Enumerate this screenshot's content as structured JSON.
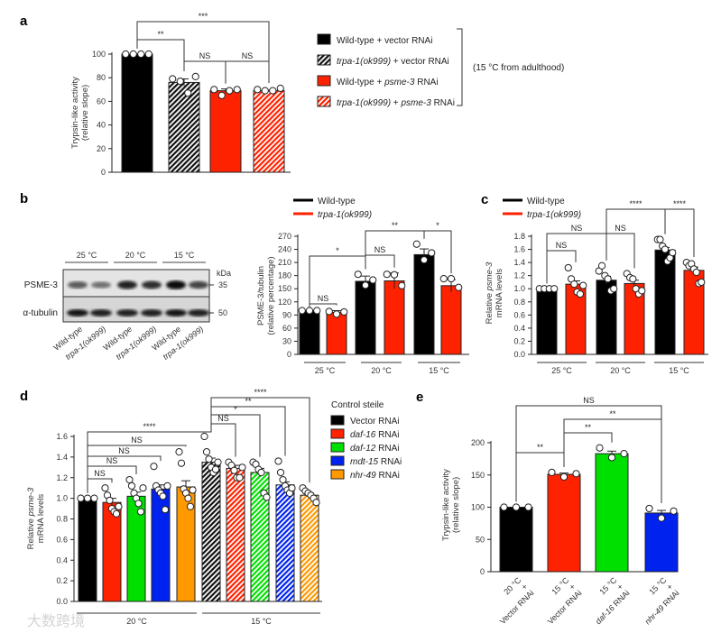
{
  "watermark": "大数跨境",
  "colors": {
    "black": "#000000",
    "red": "#ff2200",
    "green": "#00e000",
    "blue": "#0022ee",
    "orange": "#ff9900"
  },
  "panel_a": {
    "letter": "a",
    "legend": [
      {
        "parts": [
          {
            "t": "Wild-type + vector RNAi",
            "i": false
          }
        ],
        "fill": "black"
      },
      {
        "parts": [
          {
            "t": "trpa-1(ok999)",
            "i": true
          },
          {
            "t": " + vector RNAi",
            "i": false
          }
        ],
        "fill": "black-hatch"
      },
      {
        "parts": [
          {
            "t": "Wild-type + ",
            "i": false
          },
          {
            "t": "psme-3",
            "i": true
          },
          {
            "t": " RNAi",
            "i": false
          }
        ],
        "fill": "red"
      },
      {
        "parts": [
          {
            "t": "trpa-1(ok999)",
            "i": true
          },
          {
            "t": " + ",
            "i": false
          },
          {
            "t": "psme-3",
            "i": true
          },
          {
            "t": " RNAi",
            "i": false
          }
        ],
        "fill": "red-hatch"
      }
    ],
    "legend_note": "(15 °C from adulthood)"
  },
  "panel_b": {
    "letter": "b",
    "blot": {
      "temps": [
        "25 °C",
        "20 °C",
        "15 °C"
      ],
      "rows": [
        "PSME-3",
        "α-tubulin"
      ],
      "kda_label": "kDa",
      "kda": [
        "35",
        "50"
      ],
      "lanes": [
        "Wild-type",
        "trpa-1(ok999)",
        "Wild-type",
        "trpa-1(ok999)",
        "Wild-type",
        "trpa-1(ok999)"
      ],
      "psme3_intensity": [
        0.6,
        0.5,
        0.85,
        0.8,
        0.95,
        0.7
      ],
      "tubulin_intensity": [
        0.9,
        0.85,
        0.85,
        0.85,
        0.9,
        0.85
      ]
    },
    "legend": [
      "Wild-type",
      "trpa-1(ok999)"
    ]
  },
  "panel_c": {
    "letter": "c",
    "legend": [
      "Wild-type",
      "trpa-1(ok999)"
    ]
  },
  "panel_d": {
    "letter": "d",
    "legend_title": "Control steile",
    "legend": [
      {
        "parts": [
          {
            "t": "Vector RNAi",
            "i": false
          }
        ],
        "fill": "black"
      },
      {
        "parts": [
          {
            "t": "daf-16",
            "i": true
          },
          {
            "t": " RNAi",
            "i": false
          }
        ],
        "fill": "red"
      },
      {
        "parts": [
          {
            "t": "daf-12",
            "i": true
          },
          {
            "t": " RNAi",
            "i": false
          }
        ],
        "fill": "green"
      },
      {
        "parts": [
          {
            "t": "mdt-15",
            "i": true
          },
          {
            "t": " RNAi",
            "i": false
          }
        ],
        "fill": "blue"
      },
      {
        "parts": [
          {
            "t": "nhr-49",
            "i": true
          },
          {
            "t": " RNAi",
            "i": false
          }
        ],
        "fill": "orange"
      }
    ]
  },
  "panel_e": {
    "letter": "e"
  },
  "chart_data": [
    {
      "id": "a",
      "type": "bar",
      "ylabel": [
        "Trypsin-like activity",
        "(relative slope)"
      ],
      "ylim": [
        0,
        100
      ],
      "yticks": [
        0,
        20,
        40,
        60,
        80,
        100
      ],
      "categories": [
        "Wild-type + vector RNAi",
        "trpa-1(ok999) + vector RNAi",
        "Wild-type + psme-3 RNAi",
        "trpa-1(ok999) + psme-3 RNAi"
      ],
      "values": [
        100,
        76,
        69,
        69
      ],
      "errors": [
        0,
        3,
        1.5,
        0.5
      ],
      "fills": [
        "black",
        "black-hatch",
        "red",
        "red-hatch"
      ],
      "points": [
        [
          100,
          100,
          100,
          100
        ],
        [
          79,
          77,
          67,
          81
        ],
        [
          70,
          65,
          69,
          70
        ],
        [
          70,
          69,
          69,
          71
        ]
      ],
      "brackets": [
        {
          "from": 0,
          "to": 3,
          "label": "***"
        },
        {
          "from": 0,
          "to": 1,
          "label": "**"
        },
        {
          "from": 1,
          "to": 2,
          "label": "NS"
        },
        {
          "from": 2,
          "to": 3,
          "label": "NS"
        }
      ],
      "groups": []
    },
    {
      "id": "b",
      "type": "bar",
      "ylabel": [
        "PSME-3/tubulin",
        "(relative percentage)"
      ],
      "ylim": [
        0,
        270
      ],
      "yticks": [
        0,
        30,
        60,
        90,
        120,
        150,
        180,
        210,
        240,
        270
      ],
      "categories": [
        "Wild-type 25 °C",
        "trpa-1(ok999) 25 °C",
        "Wild-type 20 °C",
        "trpa-1(ok999) 20 °C",
        "Wild-type 15 °C",
        "trpa-1(ok999) 15 °C"
      ],
      "values": [
        100,
        96,
        167,
        168,
        228,
        157
      ],
      "errors": [
        0,
        4,
        12,
        18,
        13,
        14
      ],
      "fills": [
        "black",
        "red",
        "black",
        "red",
        "black",
        "red"
      ],
      "points": [
        [
          100,
          100,
          100
        ],
        [
          98,
          92,
          97
        ],
        [
          183,
          158,
          170
        ],
        [
          183,
          182,
          157
        ],
        [
          252,
          216,
          232
        ],
        [
          173,
          173,
          153
        ]
      ],
      "brackets": [
        {
          "from": 0,
          "to": 1,
          "label": "NS"
        },
        {
          "from": 0,
          "to": 2,
          "label": "*"
        },
        {
          "from": 2,
          "to": 3,
          "label": "NS"
        },
        {
          "from": 2,
          "to": 4,
          "label": "**"
        },
        {
          "from": 4,
          "to": 5,
          "label": "*"
        }
      ],
      "groups": [
        "25 °C",
        "20 °C",
        "15 °C"
      ]
    },
    {
      "id": "c",
      "type": "bar",
      "ylabel": [
        "Relative psme-3",
        "mRNA levels"
      ],
      "ylim": [
        0,
        1.8
      ],
      "yticks": [
        0,
        0.2,
        0.4,
        0.6,
        0.8,
        1.0,
        1.2,
        1.4,
        1.6,
        1.8
      ],
      "categories": [
        "Wild-type 25 °C",
        "trpa-1(ok999) 25 °C",
        "Wild-type 20 °C",
        "trpa-1(ok999) 20 °C",
        "Wild-type 15 °C",
        "trpa-1(ok999) 15 °C"
      ],
      "values": [
        1.0,
        1.07,
        1.13,
        1.08,
        1.59,
        1.28
      ],
      "errors": [
        0,
        0.05,
        0.06,
        0.05,
        0.04,
        0.05
      ],
      "fills": [
        "black",
        "red",
        "black",
        "red",
        "black",
        "red"
      ],
      "points": [
        [
          1,
          1,
          1,
          1
        ],
        [
          1.32,
          1.15,
          1.07,
          0.95,
          0.92,
          1.05
        ],
        [
          1.27,
          1.35,
          1.2,
          1.15,
          0.97,
          1.0
        ],
        [
          1.23,
          1.17,
          1.15,
          1.0,
          0.92,
          0.97
        ],
        [
          1.75,
          1.75,
          1.65,
          1.6,
          1.42,
          1.47,
          1.55
        ],
        [
          1.4,
          1.35,
          1.38,
          1.3,
          1.25,
          1.08,
          1.1
        ]
      ],
      "brackets": [
        {
          "from": 0,
          "to": 1,
          "label": "NS"
        },
        {
          "from": 0,
          "to": 2,
          "label": "NS"
        },
        {
          "from": 2,
          "to": 3,
          "label": "NS"
        },
        {
          "from": 2,
          "to": 4,
          "label": "****"
        },
        {
          "from": 4,
          "to": 5,
          "label": "****"
        }
      ],
      "groups": [
        "25 °C",
        "20 °C",
        "15 °C"
      ]
    },
    {
      "id": "d",
      "type": "bar",
      "ylabel": [
        "Relative psme-3",
        "mRNA levels"
      ],
      "ylim": [
        0,
        1.6
      ],
      "yticks": [
        0,
        0.2,
        0.4,
        0.6,
        0.8,
        1.0,
        1.2,
        1.4,
        1.6
      ],
      "categories": [
        "Vector RNAi 20 °C",
        "daf-16 RNAi 20 °C",
        "daf-12 RNAi 20 °C",
        "mdt-15 RNAi 20 °C",
        "nhr-49 RNAi 20 °C",
        "Vector RNAi 15 °C",
        "daf-16 RNAi 15 °C",
        "daf-12 RNAi 15 °C",
        "mdt-15 RNAi 15 °C",
        "nhr-49 RNAi 15 °C"
      ],
      "values": [
        1.0,
        0.96,
        1.02,
        1.09,
        1.11,
        1.35,
        1.29,
        1.25,
        1.13,
        1.03
      ],
      "errors": [
        0,
        0.04,
        0.04,
        0.04,
        0.06,
        0.04,
        0.03,
        0.04,
        0.03,
        0.02
      ],
      "fills": [
        "black",
        "red",
        "green",
        "blue",
        "orange",
        "black-hatch",
        "red-hatch",
        "green-hatch",
        "blue-hatch",
        "orange-hatch"
      ],
      "points": [
        [
          1,
          1,
          1
        ],
        [
          1.1,
          1.03,
          0.98,
          0.9,
          0.87,
          0.85,
          0.92
        ],
        [
          1.18,
          1.12,
          1.05,
          1.0,
          0.95,
          0.87,
          1.1
        ],
        [
          1.31,
          1.12,
          1.08,
          1.05,
          1.02,
          0.89,
          1.12
        ],
        [
          1.45,
          1.34,
          1.09,
          1.05,
          1.0,
          0.92,
          1.08
        ],
        [
          1.6,
          1.45,
          1.38,
          1.3,
          1.25,
          1.28,
          1.35
        ],
        [
          1.35,
          1.32,
          1.27,
          1.2,
          1.2,
          1.3
        ],
        [
          1.35,
          1.33,
          1.28,
          1.25,
          1.05,
          1.01
        ],
        [
          1.36,
          1.25,
          1.18,
          1.12,
          1.08,
          1.05,
          1.1
        ],
        [
          1.1,
          1.07,
          1.05,
          1.03,
          1.0,
          0.96
        ]
      ],
      "brackets": [
        {
          "from": 5,
          "to": 9,
          "label": "****"
        },
        {
          "from": 5,
          "to": 8,
          "label": "**"
        },
        {
          "from": 5,
          "to": 7,
          "label": "*"
        },
        {
          "from": 5,
          "to": 6,
          "label": "NS"
        },
        {
          "from": 0,
          "to": 5,
          "label": "****"
        },
        {
          "from": 0,
          "to": 4,
          "label": "NS"
        },
        {
          "from": 0,
          "to": 3,
          "label": "NS"
        },
        {
          "from": 0,
          "to": 2,
          "label": "NS"
        },
        {
          "from": 0,
          "to": 1,
          "label": "NS"
        }
      ],
      "groups": [
        "20 °C",
        "15 °C"
      ]
    },
    {
      "id": "e",
      "type": "bar",
      "ylabel": [
        "Trypsin-like activity",
        "(relative slope)"
      ],
      "ylim": [
        0,
        200
      ],
      "yticks": [
        0,
        50,
        100,
        150,
        200
      ],
      "categories": [
        [
          "20 °C",
          "+",
          "Vector RNAi"
        ],
        [
          "15 °C",
          "+",
          "Vector RNAi"
        ],
        [
          "15 °C",
          "+",
          "daf-16 RNAi"
        ],
        [
          "15 °C",
          "+",
          "nhr-49 RNAi"
        ]
      ],
      "values": [
        100,
        151,
        183,
        91
      ],
      "errors": [
        0,
        2,
        4,
        4
      ],
      "fills": [
        "black",
        "red",
        "green",
        "blue"
      ],
      "points": [
        [
          100,
          100,
          100
        ],
        [
          154,
          147,
          152
        ],
        [
          192,
          177,
          183
        ],
        [
          98,
          83,
          94
        ]
      ],
      "brackets": [
        {
          "from": 0,
          "to": 3,
          "label": "NS"
        },
        {
          "from": 1,
          "to": 3,
          "label": "**"
        },
        {
          "from": 1,
          "to": 2,
          "label": "**"
        },
        {
          "from": 0,
          "to": 1,
          "label": "**"
        }
      ],
      "groups": []
    }
  ]
}
